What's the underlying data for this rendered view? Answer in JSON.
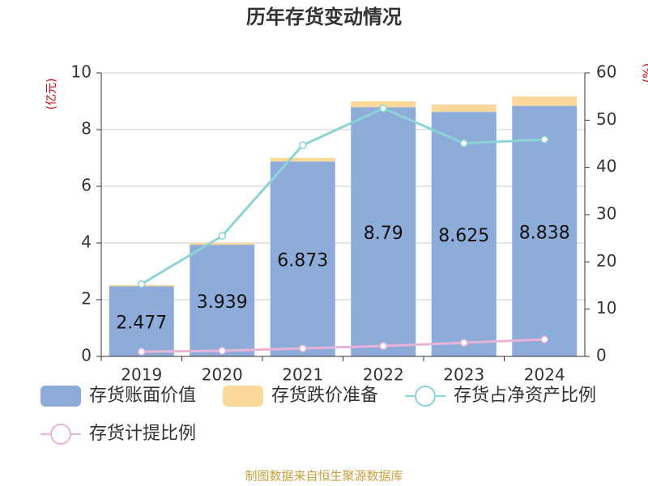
{
  "chart_data": {
    "type": "bar-line",
    "title": "历年存货变动情况",
    "y_label": "(亿元)",
    "y2_label": "(%)",
    "categories": [
      "2019",
      "2020",
      "2021",
      "2022",
      "2023",
      "2024"
    ],
    "ylim": [
      0,
      10
    ],
    "yticks": [
      0,
      2,
      4,
      6,
      8,
      10
    ],
    "y2lim": [
      0,
      60
    ],
    "y2ticks": [
      0,
      10,
      20,
      30,
      40,
      50,
      60
    ],
    "series": [
      {
        "name": "存货账面价值",
        "type": "bar",
        "color": "#8eacd9",
        "values": [
          2.477,
          3.939,
          6.873,
          8.79,
          8.625,
          8.838
        ]
      },
      {
        "name": "存货跌价准备",
        "type": "bar",
        "color": "#fbd99a",
        "values": [
          0.04,
          0.06,
          0.13,
          0.21,
          0.26,
          0.33
        ]
      },
      {
        "name": "存货占净资产比例",
        "type": "line",
        "axis": "y2",
        "color": "#8cd3d6",
        "values": [
          15.3,
          25.5,
          44.7,
          52.5,
          45.1,
          45.9
        ]
      },
      {
        "name": "存货计提比例",
        "type": "line",
        "axis": "y2",
        "color": "#e8b4d8",
        "values": [
          1.0,
          1.2,
          1.7,
          2.2,
          2.9,
          3.6
        ]
      }
    ],
    "source": "制图数据来自恒生聚源数据库"
  }
}
